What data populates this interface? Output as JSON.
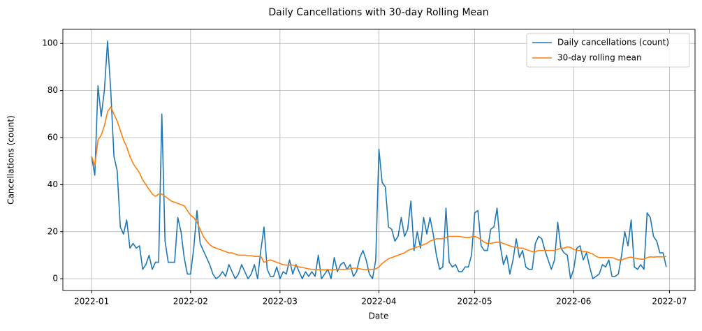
{
  "chart_data": {
    "type": "line",
    "title": "Daily Cancellations with 30-day Rolling Mean",
    "x_label": "Date",
    "y_label": "Cancellations (count)",
    "xlim": [
      -9,
      189
    ],
    "xticks": [
      {
        "value": 0,
        "label": "2022-01"
      },
      {
        "value": 31,
        "label": "2022-02"
      },
      {
        "value": 59,
        "label": "2022-03"
      },
      {
        "value": 90,
        "label": "2022-04"
      },
      {
        "value": 120,
        "label": "2022-05"
      },
      {
        "value": 151,
        "label": "2022-06"
      },
      {
        "value": 181,
        "label": "2022-07"
      }
    ],
    "ylim": [
      -5,
      106
    ],
    "yticks": [
      0,
      20,
      40,
      60,
      80,
      100
    ],
    "grid": true,
    "legend": "upper right",
    "series": [
      {
        "name": "Daily cancellations (count)",
        "color": "#1f77b4",
        "values": [
          52,
          44,
          82,
          69,
          80,
          101,
          80,
          52,
          46,
          22,
          19,
          25,
          13,
          15,
          13,
          14,
          4,
          6,
          10,
          4,
          7,
          7,
          70,
          16,
          7,
          7,
          7,
          26,
          20,
          9,
          2,
          2,
          13,
          29,
          15,
          12,
          9,
          6,
          2,
          0,
          1,
          3,
          1,
          6,
          3,
          0,
          2,
          6,
          3,
          0,
          2,
          6,
          0,
          12,
          22,
          4,
          1,
          1,
          5,
          0,
          3,
          2,
          8,
          2,
          6,
          3,
          0,
          3,
          1,
          3,
          1,
          10,
          0,
          2,
          4,
          0,
          9,
          3,
          6,
          7,
          4,
          6,
          1,
          3,
          9,
          12,
          8,
          2,
          0,
          8,
          55,
          41,
          39,
          22,
          21,
          16,
          18,
          26,
          18,
          21,
          33,
          12,
          20,
          13,
          26,
          19,
          26,
          19,
          10,
          4,
          5,
          30,
          7,
          5,
          6,
          3,
          3,
          5,
          5,
          10,
          28,
          29,
          14,
          12,
          12,
          21,
          22,
          30,
          14,
          6,
          10,
          2,
          8,
          17,
          9,
          12,
          5,
          4,
          4,
          15,
          18,
          17,
          12,
          8,
          4,
          8,
          24,
          13,
          11,
          10,
          0,
          4,
          13,
          14,
          8,
          11,
          5,
          0,
          1,
          2,
          6,
          5,
          8,
          1,
          1,
          2,
          10,
          20,
          14,
          25,
          5,
          4,
          6,
          4,
          28,
          26,
          18,
          16,
          11,
          11,
          5
        ]
      },
      {
        "name": "30-day rolling mean",
        "color": "#ff7f0e",
        "values": [
          52,
          48,
          59,
          61,
          65,
          71,
          73,
          70,
          67,
          63,
          59,
          56,
          52,
          49,
          47,
          45,
          42,
          40,
          38,
          36,
          35,
          36,
          36,
          35,
          34,
          33,
          32.5,
          32,
          31.5,
          31,
          29,
          27,
          26,
          24,
          21,
          18,
          16,
          14.5,
          13.5,
          13,
          12.5,
          12,
          11.5,
          11,
          11,
          10.5,
          10,
          10,
          10,
          9.8,
          9.8,
          9.5,
          9.5,
          9.5,
          7,
          7.5,
          8,
          7.5,
          7,
          6.5,
          6,
          5.8,
          5.8,
          5.8,
          5.5,
          5,
          4.8,
          4.5,
          4.2,
          4,
          4,
          3.8,
          3.8,
          3.8,
          3.8,
          3.8,
          3.8,
          4,
          4,
          4,
          4,
          4.2,
          4.5,
          4.5,
          4.2,
          4,
          3.8,
          4,
          4,
          4.2,
          5,
          6.5,
          7.5,
          8.5,
          9,
          9.5,
          10,
          10.5,
          11,
          12,
          12.5,
          13,
          13.5,
          14,
          14.5,
          15,
          16,
          16.5,
          17,
          17,
          17,
          17.5,
          18,
          18,
          18,
          18,
          17.8,
          17.5,
          17.5,
          17.8,
          18,
          17.5,
          16.5,
          15.5,
          15,
          15,
          15.3,
          15.5,
          15.5,
          15,
          14.5,
          14,
          13.5,
          13.5,
          13,
          13,
          12.5,
          12,
          11.5,
          11.5,
          12,
          12,
          12,
          12,
          12,
          12,
          12.5,
          13,
          13,
          13.5,
          13.3,
          12.5,
          12,
          12,
          11.5,
          11.5,
          11,
          10.5,
          9.5,
          9,
          9,
          9,
          9,
          9,
          8.5,
          8,
          8,
          8.5,
          9,
          9.2,
          8.8,
          8.5,
          8.3,
          8.3,
          9,
          9.3,
          9.2,
          9.3,
          9.3,
          9.3,
          9.5
        ]
      }
    ]
  }
}
